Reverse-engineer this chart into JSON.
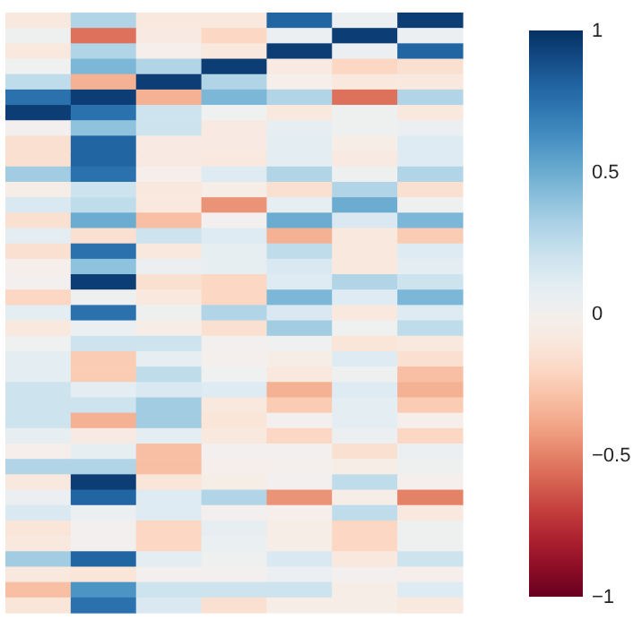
{
  "chart_data": {
    "type": "heatmap",
    "categories": [
      null,
      null,
      null,
      null,
      null,
      null,
      null
    ],
    "y_categories": [
      null,
      null,
      null,
      null,
      null,
      null,
      null,
      null,
      null,
      null,
      null,
      null,
      null,
      null,
      null,
      null,
      null,
      null,
      null,
      null,
      null,
      null,
      null,
      null,
      null,
      null,
      null,
      null,
      null,
      null,
      null,
      null,
      null,
      null,
      null,
      null,
      null,
      null,
      null
    ],
    "cells": [
      [
        -0.1,
        0.3,
        -0.1,
        -0.1,
        0.8,
        0.05,
        0.95
      ],
      [
        0.03,
        -0.55,
        -0.08,
        -0.2,
        0.05,
        0.95,
        0.05
      ],
      [
        -0.1,
        0.3,
        -0.03,
        -0.1,
        0.95,
        0.05,
        0.8
      ],
      [
        0.02,
        0.45,
        0.3,
        0.95,
        -0.08,
        -0.2,
        -0.15
      ],
      [
        0.25,
        -0.35,
        0.95,
        0.3,
        -0.03,
        -0.1,
        -0.1
      ],
      [
        0.75,
        0.95,
        -0.35,
        0.45,
        0.3,
        -0.55,
        0.3
      ],
      [
        0.95,
        0.75,
        0.2,
        0.02,
        -0.1,
        0.03,
        -0.1
      ],
      [
        0,
        0.4,
        0.2,
        -0.08,
        0.08,
        0.03,
        0.05
      ],
      [
        -0.15,
        0.8,
        -0.08,
        -0.08,
        0.1,
        -0.05,
        0.12
      ],
      [
        -0.15,
        0.8,
        -0.08,
        -0.1,
        0.1,
        -0.08,
        0.12
      ],
      [
        0.35,
        0.75,
        -0.03,
        0.12,
        0.3,
        0.03,
        0.3
      ],
      [
        -0.05,
        0.2,
        -0.1,
        -0.05,
        -0.15,
        0.3,
        -0.15
      ],
      [
        0.15,
        0.25,
        -0.1,
        -0.45,
        0.08,
        0.5,
        0.03
      ],
      [
        -0.15,
        0.5,
        -0.3,
        0,
        0.5,
        0.15,
        0.45
      ],
      [
        0.1,
        -0.15,
        0.2,
        0.12,
        -0.35,
        -0.1,
        -0.25
      ],
      [
        -0.15,
        0.75,
        -0.1,
        0.08,
        0.25,
        -0.1,
        0.12
      ],
      [
        -0.03,
        0.4,
        0.05,
        0.08,
        0.15,
        -0.1,
        0.1
      ],
      [
        0,
        0.95,
        -0.15,
        -0.2,
        0.12,
        0.3,
        0.2
      ],
      [
        -0.2,
        0.03,
        -0.1,
        -0.2,
        0.45,
        0.12,
        0.45
      ],
      [
        0.1,
        0.75,
        0.03,
        0.3,
        0.15,
        -0.1,
        0.12
      ],
      [
        -0.1,
        0.05,
        -0.05,
        -0.15,
        0.35,
        0.02,
        0.25
      ],
      [
        0.02,
        0.2,
        0.2,
        0,
        0.02,
        -0.12,
        -0.1
      ],
      [
        0.1,
        -0.25,
        0.08,
        -0.02,
        -0.05,
        0.12,
        -0.15
      ],
      [
        0.1,
        -0.25,
        0.25,
        0.02,
        -0.1,
        0.03,
        -0.3
      ],
      [
        0.2,
        0.1,
        0.15,
        0.12,
        -0.35,
        0.12,
        -0.35
      ],
      [
        0.2,
        0.2,
        0.35,
        -0.1,
        -0.25,
        0.1,
        -0.25
      ],
      [
        0.2,
        -0.35,
        0.35,
        -0.12,
        0,
        0.1,
        -0.03
      ],
      [
        0.08,
        -0.08,
        0.1,
        -0.1,
        -0.2,
        0.05,
        -0.2
      ],
      [
        -0.03,
        0.08,
        -0.3,
        0,
        0,
        -0.15,
        0.05
      ],
      [
        0.3,
        0.3,
        -0.3,
        -0.03,
        -0.02,
        -0.05,
        0.03
      ],
      [
        -0.1,
        0.95,
        -0.12,
        -0.05,
        0,
        0.25,
        -0.02
      ],
      [
        0.05,
        0.8,
        0.12,
        0.3,
        -0.45,
        -0.05,
        -0.5
      ],
      [
        0.15,
        0.05,
        0.12,
        0,
        -0.03,
        0.25,
        -0.1
      ],
      [
        -0.12,
        0,
        -0.2,
        0.08,
        -0.05,
        -0.2,
        0.03
      ],
      [
        -0.1,
        0,
        -0.2,
        0.06,
        -0.05,
        -0.2,
        0.03
      ],
      [
        0.35,
        0.8,
        0.1,
        0.03,
        0.15,
        -0.1,
        0.2
      ],
      [
        -0.1,
        -0.12,
        0,
        0,
        0.05,
        0,
        -0.03
      ],
      [
        -0.3,
        0.6,
        0.2,
        0.2,
        0.2,
        -0.05,
        0.12
      ],
      [
        -0.12,
        0.75,
        0.15,
        -0.15,
        -0.05,
        -0.05,
        -0.1
      ]
    ],
    "clim": [
      -1,
      1
    ],
    "cticks": [
      1,
      0.5,
      0,
      {
        "value": -0.5,
        "label": "−0.5"
      },
      {
        "value": -1,
        "label": "−1"
      }
    ]
  }
}
